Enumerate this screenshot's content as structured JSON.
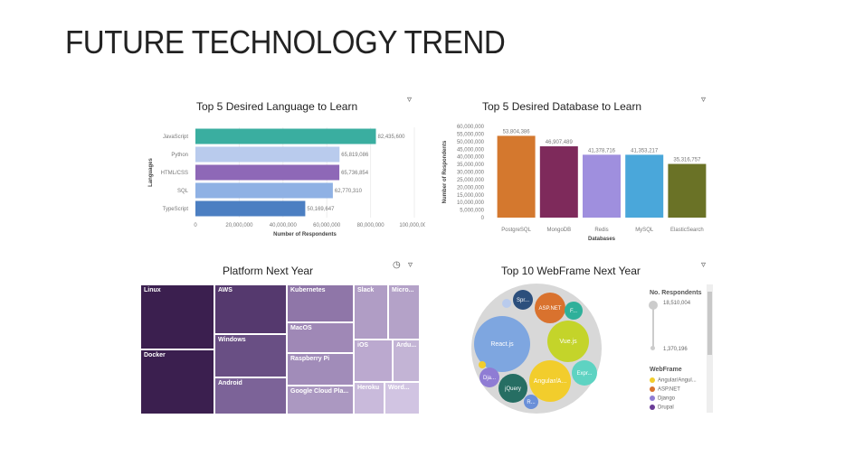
{
  "page": {
    "title": "FUTURE TECHNOLOGY TREND"
  },
  "colors": {
    "filter_icon": "#555555"
  },
  "chart_data": [
    {
      "type": "bar",
      "orientation": "horizontal",
      "title": "Top 5 Desired Language to Learn",
      "xlabel": "Number of Respondents",
      "ylabel": "Languages",
      "categories": [
        "JavaScript",
        "Python",
        "HTML/CSS",
        "SQL",
        "TypeScript"
      ],
      "values": [
        82435600,
        65819086,
        65736854,
        62770310,
        50169647
      ],
      "value_labels": [
        "82,435,600",
        "65,819,086",
        "65,736,854",
        "62,770,310",
        "50,169,647"
      ],
      "colors": [
        "#3aaea0",
        "#b9cbed",
        "#8e68b7",
        "#8fb1e4",
        "#4c7fc2"
      ],
      "xlim": [
        0,
        100000000
      ],
      "xticks": [
        "0",
        "20,000,000",
        "40,000,000",
        "60,000,000",
        "80,000,000",
        "100,000,000"
      ]
    },
    {
      "type": "bar",
      "title": "Top 5 Desired Database to Learn",
      "xlabel": "Databases",
      "ylabel": "Number of Respondents",
      "categories": [
        "PostgreSQL",
        "MongoDB",
        "Redis",
        "MySQL",
        "ElasticSearch"
      ],
      "values": [
        53804386,
        46907489,
        41378716,
        41353217,
        35316757
      ],
      "value_labels": [
        "53,804,386",
        "46,907,489",
        "41,378,716",
        "41,353,217",
        "35,316,757"
      ],
      "colors": [
        "#d4782e",
        "#7e2a5b",
        "#9f8fde",
        "#4aa7da",
        "#6a7226"
      ],
      "ylim": [
        0,
        60000000
      ],
      "yticks": [
        "0",
        "5,000,000",
        "10,000,000",
        "15,000,000",
        "20,000,000",
        "25,000,000",
        "30,000,000",
        "35,000,000",
        "40,000,000",
        "45,000,000",
        "50,000,000",
        "55,000,000",
        "60,000,000"
      ]
    },
    {
      "type": "treemap",
      "title": "Platform Next Year",
      "items": [
        {
          "label": "Linux",
          "color": "#3b1f4f"
        },
        {
          "label": "Docker",
          "color": "#3b1f4f"
        },
        {
          "label": "AWS",
          "color": "#55396e"
        },
        {
          "label": "Windows",
          "color": "#694f84"
        },
        {
          "label": "Android",
          "color": "#7c6398"
        },
        {
          "label": "Kubernetes",
          "color": "#8f76a8"
        },
        {
          "label": "MacOS",
          "color": "#9f88b6"
        },
        {
          "label": "Raspberry Pi",
          "color": "#a18cb9"
        },
        {
          "label": "Google Cloud Pla...",
          "color": "#ab98c1"
        },
        {
          "label": "Slack",
          "color": "#b09dc5"
        },
        {
          "label": "Micro...",
          "color": "#b4a2c8"
        },
        {
          "label": "iOS",
          "color": "#bba9cf"
        },
        {
          "label": "Ardu...",
          "color": "#c3b4d5"
        },
        {
          "label": "Heroku",
          "color": "#c9badb"
        },
        {
          "label": "Word...",
          "color": "#d1c4e2"
        }
      ]
    },
    {
      "type": "bubble",
      "title": "Top 10 WebFrame Next Year",
      "items": [
        {
          "label": "React.js",
          "color": "#7ea6e0"
        },
        {
          "label": "Vue.js",
          "color": "#c4d42a"
        },
        {
          "label": "Angular/A...",
          "color": "#f2cd2c"
        },
        {
          "label": "ASP.NET",
          "color": "#d9722e"
        },
        {
          "label": "Spr...",
          "color": "#2c4f7c"
        },
        {
          "label": "F...",
          "color": "#2fb09a"
        },
        {
          "label": "Expr...",
          "color": "#5ed3c2"
        },
        {
          "label": "jQuery",
          "color": "#266e63"
        },
        {
          "label": "Dja...",
          "color": "#8f7cd4"
        },
        {
          "label": "R...",
          "color": "#6a8fd8"
        }
      ],
      "legend": {
        "size_title": "No. Respondents",
        "size_max": "18,510,004",
        "size_min": "1,370,196",
        "color_title": "WebFrame",
        "entries": [
          {
            "label": "Angular/Angul...",
            "color": "#f2cd2c"
          },
          {
            "label": "ASP.NET",
            "color": "#d9722e"
          },
          {
            "label": "Django",
            "color": "#8f7cd4"
          },
          {
            "label": "Drupal",
            "color": "#6a3d96"
          }
        ]
      }
    }
  ]
}
